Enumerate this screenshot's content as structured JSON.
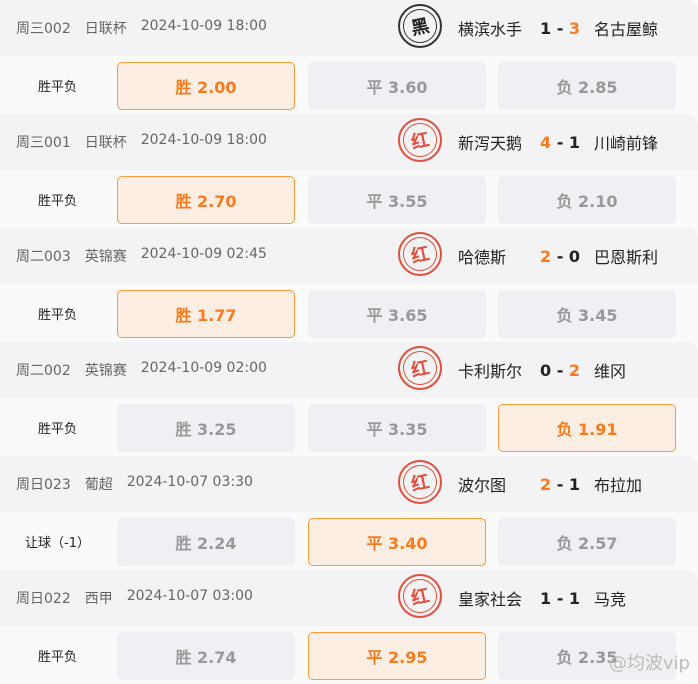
{
  "matches": [
    {
      "code": "周三002",
      "league": "日联杯",
      "time": "2024-10-09 18:00",
      "stamp": "黑",
      "stamp_color": "black",
      "home": "横滨水手",
      "score_home": "1",
      "score_away": "3",
      "winner": "away",
      "market": "胜平负",
      "odds": [
        "胜 2.00",
        "平 3.60",
        "负 2.85"
      ],
      "selected": 0
    },
    {
      "code": "周三001",
      "league": "日联杯",
      "time": "2024-10-09 18:00",
      "stamp": "红",
      "stamp_color": "red",
      "home": "新泻天鹅",
      "score_home": "4",
      "score_away": "1",
      "winner": "home",
      "market": "胜平负",
      "odds": [
        "胜 2.70",
        "平 3.55",
        "负 2.10"
      ],
      "selected": 0
    },
    {
      "code": "周二003",
      "league": "英锦赛",
      "time": "2024-10-09 02:45",
      "stamp": "红",
      "stamp_color": "red",
      "home": "哈德斯",
      "score_home": "2",
      "score_away": "0",
      "winner": "home",
      "market": "胜平负",
      "odds": [
        "胜 1.77",
        "平 3.65",
        "负 3.45"
      ],
      "selected": 0
    },
    {
      "code": "周二002",
      "league": "英锦赛",
      "time": "2024-10-09 02:00",
      "stamp": "红",
      "stamp_color": "red",
      "home": "卡利斯尔",
      "score_home": "0",
      "score_away": "2",
      "winner": "away",
      "market": "胜平负",
      "odds": [
        "胜 3.25",
        "平 3.35",
        "负 1.91"
      ],
      "selected": 2
    },
    {
      "code": "周日023",
      "league": "葡超",
      "time": "2024-10-07 03:30",
      "stamp": "红",
      "stamp_color": "red",
      "home": "波尔图",
      "score_home": "2",
      "score_away": "1",
      "winner": "home",
      "market": "让球（-1）",
      "odds": [
        "胜 2.24",
        "平 3.40",
        "负 2.57"
      ],
      "selected": 1
    },
    {
      "code": "周日022",
      "league": "西甲",
      "time": "2024-10-07 03:00",
      "stamp": "红",
      "stamp_color": "red",
      "home": "皇家社会",
      "score_home": "1",
      "score_away": "1",
      "winner": "none",
      "market": "胜平负",
      "odds": [
        "胜 2.74",
        "平 2.95",
        "负 2.35"
      ],
      "selected": 1
    }
  ],
  "watermark": "@均波vip",
  "colors": {
    "accent": "#ff7a1a",
    "stamp_red": "#e0503a",
    "header_bg": "#f3f3f5",
    "button_bg": "#f0f0f4"
  }
}
